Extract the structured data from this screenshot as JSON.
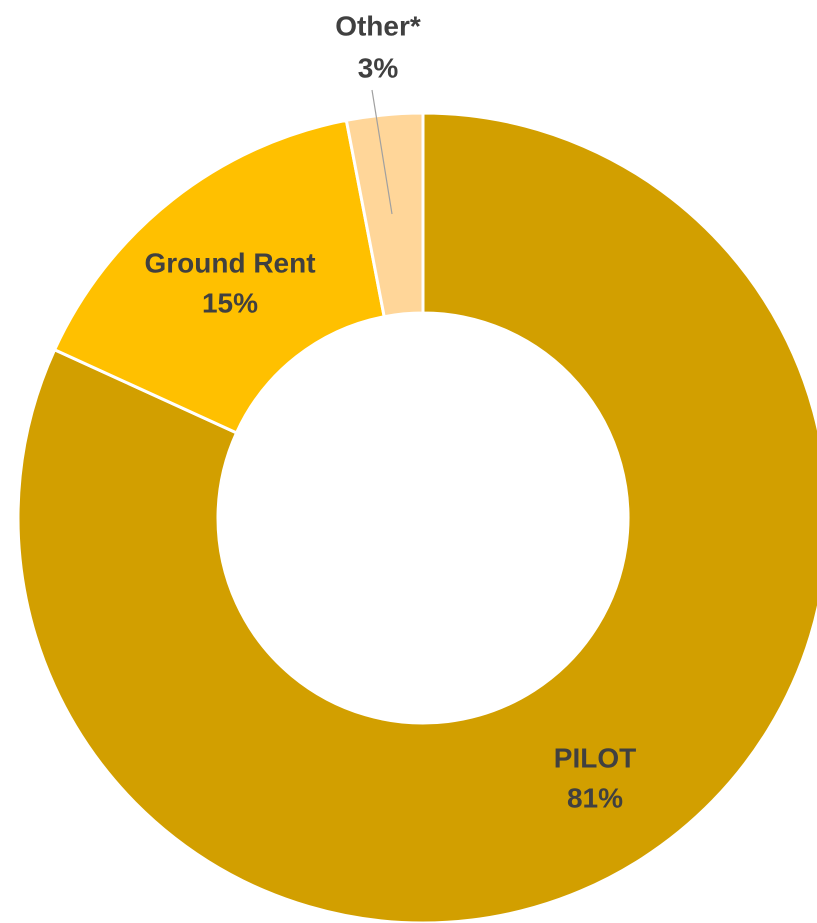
{
  "chart_data": {
    "type": "donut",
    "categories": [
      "PILOT",
      "Ground Rent",
      "Other*"
    ],
    "values": [
      81,
      15,
      3
    ],
    "value_labels": [
      "81%",
      "15%",
      "3%"
    ],
    "colors": [
      "#d29f00",
      "#ffc000",
      "#ffd699"
    ]
  }
}
